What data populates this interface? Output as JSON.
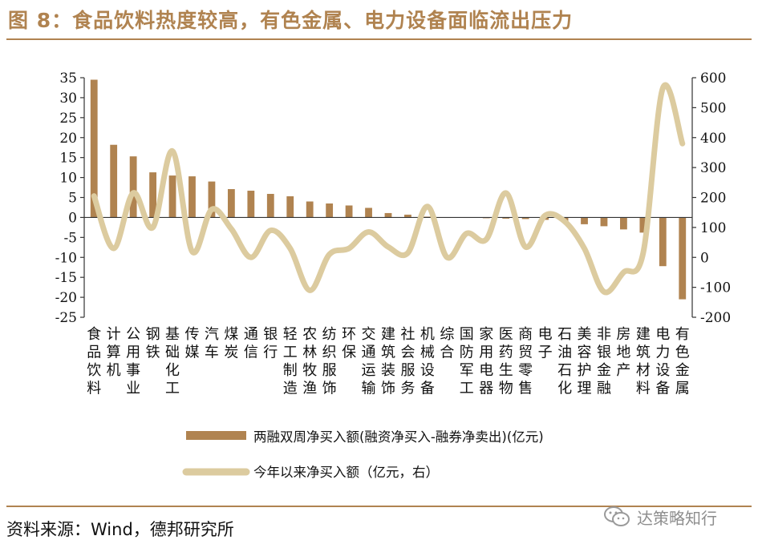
{
  "title": "图 8：食品饮料热度较高，有色金属、电力设备面临流出压力",
  "source": "资料来源：Wind，德邦研究所",
  "watermark": "达策略知行",
  "colors": {
    "bar": "#b08350",
    "line": "#dccb9f",
    "accent": "#b08350",
    "axis": "#333333"
  },
  "chart_data": {
    "type": "bar+line",
    "categories": [
      "食品饮料",
      "计算机",
      "公用事业",
      "钢铁",
      "基础化工",
      "传媒",
      "汽车",
      "煤炭",
      "通信",
      "银行",
      "轻工制造",
      "农林牧渔",
      "纺织服饰",
      "环保",
      "交通运输",
      "建筑装饰",
      "社会服务",
      "机械设备",
      "综合",
      "国防军工",
      "家用电器",
      "医药生物",
      "商贸零售",
      "电子",
      "石油石化",
      "美容护理",
      "非银金融",
      "房地产",
      "建筑材料",
      "电力设备",
      "有色金属"
    ],
    "series": [
      {
        "name": "两融双周净买入额(融资净买入-融券净卖出)(亿元)",
        "axis": "left",
        "type": "bar",
        "values": [
          34.5,
          18.2,
          15.3,
          11.3,
          10.5,
          10.3,
          9.0,
          7.1,
          6.7,
          5.9,
          5.3,
          4.0,
          3.5,
          3.0,
          2.4,
          1.1,
          0.7,
          0.2,
          0.0,
          -0.1,
          -0.2,
          -0.3,
          -0.4,
          -0.6,
          -1.0,
          -1.7,
          -2.2,
          -3.0,
          -3.8,
          -12.2,
          -20.5
        ]
      },
      {
        "name": "今年以来净买入额（亿元，右）",
        "axis": "right",
        "type": "line",
        "values": [
          205,
          30,
          215,
          100,
          355,
          20,
          160,
          95,
          0,
          90,
          30,
          -110,
          10,
          30,
          85,
          35,
          15,
          170,
          0,
          80,
          60,
          215,
          35,
          140,
          120,
          30,
          -115,
          -50,
          15,
          565,
          380
        ]
      }
    ],
    "y_left": {
      "min": -25,
      "max": 35,
      "ticks": [
        35,
        30,
        25,
        20,
        15,
        10,
        5,
        0,
        -5,
        -10,
        -15,
        -20,
        -25
      ]
    },
    "y_right": {
      "min": -200,
      "max": 600,
      "ticks": [
        600,
        500,
        400,
        300,
        200,
        100,
        0,
        -100,
        -200
      ]
    },
    "legend_placement": "bottom-center",
    "grid": false
  }
}
